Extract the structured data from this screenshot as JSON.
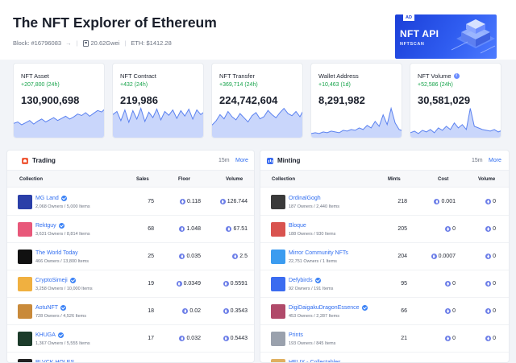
{
  "header": {
    "title": "The NFT Explorer of Ethereum",
    "block": "Block: #16796083",
    "gas": "20.62Gwei",
    "eth_price": "ETH: $1412.28"
  },
  "ad": {
    "badge": "AD",
    "title": "NFT API",
    "subtitle": "NFTSCAN"
  },
  "stats": [
    {
      "label": "NFT Asset",
      "change": "+207,800 (24h)",
      "value": "130,900,698",
      "spark": [
        20,
        22,
        18,
        21,
        24,
        19,
        23,
        26,
        22,
        25,
        28,
        24,
        27,
        30,
        26,
        29,
        33,
        31,
        35,
        30,
        34,
        38,
        36,
        41
      ]
    },
    {
      "label": "NFT Contract",
      "change": "+432 (24h)",
      "value": "219,986",
      "spark": [
        30,
        34,
        22,
        36,
        20,
        35,
        24,
        38,
        21,
        33,
        26,
        37,
        23,
        34,
        29,
        36,
        25,
        35,
        28,
        37,
        24,
        36,
        30,
        34
      ]
    },
    {
      "label": "NFT Transfer",
      "change": "+369,714 (24h)",
      "value": "224,742,604",
      "spark": [
        12,
        16,
        22,
        18,
        25,
        20,
        17,
        23,
        19,
        15,
        21,
        24,
        18,
        20,
        26,
        22,
        19,
        24,
        28,
        23,
        21,
        25,
        20,
        27
      ]
    },
    {
      "label": "Wallet Address",
      "change": "+10,463 (1d)",
      "value": "8,291,982",
      "spark": [
        5,
        6,
        5,
        7,
        6,
        8,
        7,
        6,
        9,
        8,
        10,
        9,
        12,
        10,
        15,
        12,
        20,
        14,
        28,
        16,
        36,
        18,
        10,
        8
      ]
    },
    {
      "label": "NFT Volume",
      "change": "+52,586 (24h)",
      "value": "30,581,029",
      "info": "i",
      "spark": [
        6,
        8,
        5,
        9,
        7,
        10,
        6,
        12,
        9,
        14,
        10,
        18,
        12,
        16,
        10,
        36,
        14,
        12,
        10,
        9,
        8,
        10,
        7,
        9
      ]
    }
  ],
  "trading": {
    "title": "Trading",
    "period": "15m",
    "more": "More",
    "columns": {
      "collection": "Collection",
      "sales": "Sales",
      "floor": "Floor",
      "volume": "Volume"
    },
    "rows": [
      {
        "name": "MG Land",
        "sub": "2,068 Owners / 5,000 Items",
        "sales": "75",
        "floor": "0.118",
        "volume": "126.744",
        "color": "#2b3fa8"
      },
      {
        "name": "Rektguy",
        "sub": "3,631 Owners / 8,814 Items",
        "sales": "68",
        "floor": "1.048",
        "volume": "67.51",
        "color": "#e8587a"
      },
      {
        "name": "The World Today",
        "sub": "466 Owners / 13,800 Items",
        "sales": "25",
        "floor": "0.035",
        "volume": "2.5",
        "color": "#111111"
      },
      {
        "name": "CryptoSimeji",
        "sub": "3,258 Owners / 10,000 Items",
        "sales": "19",
        "floor": "0.0349",
        "volume": "0.5591",
        "color": "#f0b040"
      },
      {
        "name": "AotuNFT",
        "sub": "728 Owners / 4,526 Items",
        "sales": "18",
        "floor": "0.02",
        "volume": "0.3543",
        "color": "#c98a3a"
      },
      {
        "name": "KHUGA",
        "sub": "1,367 Owners / 5,555 Items",
        "sales": "17",
        "floor": "0.032",
        "volume": "0.5443",
        "color": "#1c3b2a"
      },
      {
        "name": "BLVCK HOLES",
        "sub": "",
        "sales": "",
        "floor": "",
        "volume": "",
        "color": "#222222"
      }
    ]
  },
  "minting": {
    "title": "Minting",
    "period": "15m",
    "more": "More",
    "columns": {
      "collection": "Collection",
      "mints": "Mints",
      "cost": "Cost",
      "volume": "Volume"
    },
    "rows": [
      {
        "name": "OrdinalGogh",
        "sub": "187 Owners / 2,440 Items",
        "mints": "218",
        "cost": "0.001",
        "volume": "0",
        "color": "#3a3a3a"
      },
      {
        "name": "Bloque",
        "sub": "188 Owners / 930 Items",
        "mints": "205",
        "cost": "0",
        "volume": "0",
        "color": "#d9534f"
      },
      {
        "name": "Mirror Community NFTs",
        "sub": "22,751 Owners / 1 Items",
        "mints": "204",
        "cost": "0.0007",
        "volume": "0",
        "color": "#3b9cf0"
      },
      {
        "name": "Defybirds",
        "sub": "92 Owners / 191 Items",
        "mints": "95",
        "cost": "0",
        "volume": "0",
        "color": "#3b6cf0"
      },
      {
        "name": "DigiDaigakuDragonEssence",
        "sub": "453 Owners / 2,287 Items",
        "mints": "66",
        "cost": "0",
        "volume": "0",
        "color": "#b04a6a"
      },
      {
        "name": "Prints",
        "sub": "193 Owners / 845 Items",
        "mints": "21",
        "cost": "0",
        "volume": "0",
        "color": "#9aa1ad"
      },
      {
        "name": "HELIX - Collectables",
        "sub": "",
        "mints": "",
        "cost": "",
        "volume": "",
        "color": "#e0b060"
      }
    ]
  },
  "colors": {
    "accent": "#2f6df0",
    "positive": "#16a34a",
    "chart_fill": "#c9d6fb",
    "chart_line": "#5b82f0"
  }
}
